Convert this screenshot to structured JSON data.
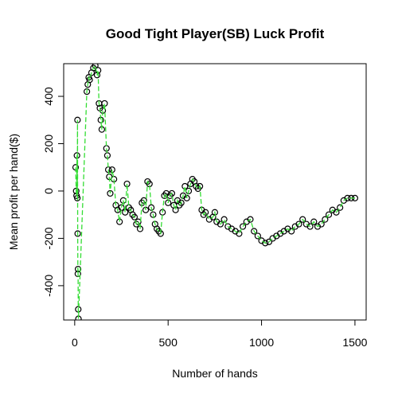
{
  "chart_data": {
    "type": "scatter-line",
    "title": "Good Tight Player(SB) Luck Profit",
    "x_label": "Number of hands",
    "y_label": "Mean profit per hand($)",
    "xlim": [
      -59,
      1560
    ],
    "ylim": [
      -545,
      538
    ],
    "xticks": [
      0,
      500,
      1000,
      1500
    ],
    "yticks": [
      -400,
      -200,
      0,
      200,
      400
    ],
    "point_color": "#000000",
    "line_color": "#33dd33",
    "x": [
      5,
      8,
      10,
      12,
      14,
      15,
      16,
      17,
      18,
      19,
      20,
      65,
      70,
      75,
      80,
      90,
      100,
      110,
      120,
      125,
      130,
      135,
      140,
      145,
      150,
      160,
      170,
      175,
      180,
      185,
      190,
      200,
      210,
      220,
      230,
      240,
      250,
      260,
      270,
      280,
      290,
      300,
      310,
      320,
      330,
      340,
      350,
      360,
      370,
      380,
      390,
      400,
      410,
      420,
      430,
      440,
      450,
      460,
      470,
      480,
      490,
      500,
      510,
      520,
      530,
      540,
      550,
      560,
      570,
      580,
      590,
      600,
      610,
      620,
      630,
      640,
      650,
      660,
      670,
      680,
      690,
      700,
      720,
      740,
      750,
      760,
      780,
      800,
      820,
      840,
      860,
      880,
      900,
      920,
      940,
      960,
      980,
      1000,
      1020,
      1040,
      1060,
      1080,
      1100,
      1120,
      1140,
      1160,
      1180,
      1200,
      1220,
      1240,
      1260,
      1280,
      1300,
      1320,
      1340,
      1360,
      1380,
      1400,
      1420,
      1440,
      1460,
      1480,
      1500
    ],
    "values": [
      100,
      0,
      -20,
      150,
      -30,
      300,
      -180,
      -350,
      -330,
      -500,
      -540,
      420,
      450,
      480,
      470,
      500,
      520,
      530,
      490,
      510,
      370,
      350,
      300,
      260,
      340,
      370,
      180,
      150,
      90,
      60,
      -10,
      90,
      50,
      -60,
      -80,
      -130,
      -70,
      -40,
      -90,
      30,
      -70,
      -80,
      -100,
      -110,
      -140,
      -130,
      -160,
      -50,
      -40,
      -80,
      40,
      30,
      -70,
      -100,
      -140,
      -160,
      -170,
      -180,
      -90,
      -20,
      -10,
      -50,
      -20,
      -10,
      -60,
      -80,
      -40,
      -60,
      -50,
      -20,
      20,
      -30,
      0,
      30,
      50,
      40,
      20,
      10,
      20,
      -80,
      -100,
      -90,
      -120,
      -110,
      -90,
      -130,
      -140,
      -120,
      -150,
      -160,
      -170,
      -180,
      -150,
      -130,
      -120,
      -170,
      -190,
      -210,
      -220,
      -215,
      -200,
      -190,
      -180,
      -170,
      -160,
      -170,
      -150,
      -140,
      -120,
      -140,
      -150,
      -130,
      -150,
      -140,
      -120,
      -100,
      -80,
      -90,
      -70,
      -40,
      -30,
      -30,
      -30
    ]
  }
}
